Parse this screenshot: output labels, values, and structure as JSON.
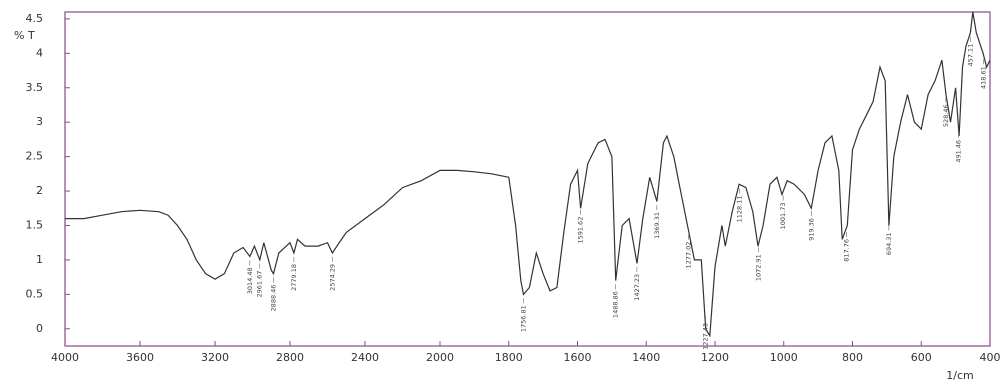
{
  "chart_data": {
    "type": "line",
    "y_label": "% T",
    "x_label": "1/cm",
    "color": "#333333",
    "frame_color": "#8a4a8a",
    "x_reversed": true,
    "x_scale_break": 2000,
    "xlim": [
      4000,
      400
    ],
    "ylim": [
      -0.25,
      4.6
    ],
    "xticks": [
      4000,
      3600,
      3200,
      2800,
      2400,
      2000,
      1800,
      1600,
      1400,
      1200,
      1000,
      800,
      600,
      400
    ],
    "yticks": [
      0,
      0.5,
      1,
      1.5,
      2,
      2.5,
      3,
      3.5,
      4,
      4.5
    ],
    "x": [
      4000,
      3900,
      3800,
      3700,
      3600,
      3500,
      3450,
      3400,
      3350,
      3300,
      3250,
      3200,
      3150,
      3100,
      3050,
      3014,
      2990,
      2961,
      2940,
      2900,
      2888,
      2860,
      2820,
      2800,
      2779,
      2760,
      2720,
      2650,
      2600,
      2574,
      2550,
      2500,
      2400,
      2300,
      2200,
      2100,
      2000,
      1950,
      1900,
      1850,
      1800,
      1780,
      1765,
      1757,
      1740,
      1720,
      1700,
      1680,
      1660,
      1640,
      1620,
      1600,
      1591,
      1570,
      1540,
      1520,
      1500,
      1489,
      1470,
      1450,
      1427,
      1410,
      1390,
      1369,
      1350,
      1340,
      1320,
      1300,
      1280,
      1260,
      1240,
      1227,
      1215,
      1200,
      1180,
      1170,
      1150,
      1130,
      1110,
      1090,
      1075,
      1060,
      1040,
      1020,
      1005,
      990,
      970,
      940,
      920,
      900,
      880,
      860,
      840,
      830,
      815,
      800,
      780,
      760,
      740,
      720,
      705,
      694,
      680,
      660,
      640,
      620,
      600,
      580,
      560,
      540,
      528,
      515,
      500,
      490,
      480,
      470,
      457,
      450,
      440,
      420,
      410,
      400
    ],
    "values": [
      1.6,
      1.6,
      1.65,
      1.7,
      1.72,
      1.7,
      1.65,
      1.5,
      1.3,
      1.0,
      0.8,
      0.72,
      0.8,
      1.1,
      1.18,
      1.05,
      1.2,
      1.0,
      1.25,
      0.85,
      0.8,
      1.1,
      1.2,
      1.25,
      1.1,
      1.3,
      1.2,
      1.2,
      1.25,
      1.1,
      1.2,
      1.4,
      1.6,
      1.8,
      2.05,
      2.15,
      2.3,
      2.3,
      2.28,
      2.25,
      2.2,
      1.5,
      0.7,
      0.5,
      0.6,
      1.1,
      0.8,
      0.55,
      0.6,
      1.4,
      2.1,
      2.3,
      1.75,
      2.4,
      2.7,
      2.75,
      2.5,
      0.7,
      1.5,
      1.6,
      0.95,
      1.6,
      2.2,
      1.85,
      2.7,
      2.8,
      2.5,
      2.0,
      1.5,
      1.0,
      1.0,
      0.0,
      -0.1,
      0.9,
      1.5,
      1.2,
      1.7,
      2.1,
      2.05,
      1.7,
      1.2,
      1.5,
      2.1,
      2.2,
      1.95,
      2.15,
      2.1,
      1.95,
      1.75,
      2.3,
      2.7,
      2.8,
      2.3,
      1.3,
      1.5,
      2.6,
      2.9,
      3.1,
      3.3,
      3.8,
      3.6,
      1.5,
      2.5,
      3.0,
      3.4,
      3.0,
      2.9,
      3.4,
      3.6,
      3.9,
      3.4,
      3.0,
      3.5,
      2.8,
      3.8,
      4.1,
      4.3,
      4.6,
      4.3,
      4.0,
      3.8,
      3.9
    ],
    "peaks": [
      3014.48,
      2961.67,
      2888.46,
      2779.18,
      2574.29,
      1756.81,
      1591.62,
      1488.86,
      1427.23,
      1369.31,
      1277.02,
      1227.43,
      1128.11,
      1072.91,
      1001.73,
      919.36,
      817.76,
      694.31,
      528.46,
      491.46,
      457.11,
      418.61
    ]
  }
}
